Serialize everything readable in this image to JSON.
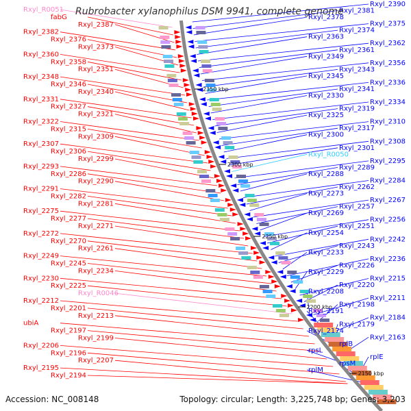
{
  "title": "Rubrobacter xylanophilus DSM 9941, complete genome",
  "footer": {
    "accession": "Accession: NC_008148",
    "summary": "Topology: circular; Length: 3,225,748 bp; Genes: 3,203"
  },
  "colors": {
    "forward": "#ff0000",
    "reverse": "#0000ff",
    "rna_left": "#ff88cc",
    "rna_right": "#33ccff",
    "backbone": "#888888"
  },
  "ticks": [
    "2350 kbp",
    "2300 kbp",
    "2250 kbp",
    "2200 kbp",
    "2150 kbp"
  ],
  "left_labels": [
    {
      "text": "Rxyl_R0051",
      "kind": "rna"
    },
    {
      "text": "fabG",
      "kind": "gene"
    },
    {
      "text": "Rxyl_2387",
      "kind": "gene"
    },
    {
      "text": "Rxyl_2382",
      "kind": "gene"
    },
    {
      "text": "Rxyl_2376",
      "kind": "gene"
    },
    {
      "text": "Rxyl_2373",
      "kind": "gene"
    },
    {
      "text": "Rxyl_2360",
      "kind": "gene"
    },
    {
      "text": "Rxyl_2358",
      "kind": "gene"
    },
    {
      "text": "Rxyl_2351",
      "kind": "gene"
    },
    {
      "text": "Rxyl_2348",
      "kind": "gene"
    },
    {
      "text": "Rxyl_2346",
      "kind": "gene"
    },
    {
      "text": "Rxyl_2340",
      "kind": "gene"
    },
    {
      "text": "Rxyl_2331",
      "kind": "gene"
    },
    {
      "text": "Rxyl_2327",
      "kind": "gene"
    },
    {
      "text": "Rxyl_2321",
      "kind": "gene"
    },
    {
      "text": "Rxyl_2322",
      "kind": "gene"
    },
    {
      "text": "Rxyl_2315",
      "kind": "gene"
    },
    {
      "text": "Rxyl_2309",
      "kind": "gene"
    },
    {
      "text": "Rxyl_2307",
      "kind": "gene"
    },
    {
      "text": "Rxyl_2306",
      "kind": "gene"
    },
    {
      "text": "Rxyl_2299",
      "kind": "gene"
    },
    {
      "text": "Rxyl_2293",
      "kind": "gene"
    },
    {
      "text": "Rxyl_2286",
      "kind": "gene"
    },
    {
      "text": "Rxyl_2290",
      "kind": "gene"
    },
    {
      "text": "Rxyl_2291",
      "kind": "gene"
    },
    {
      "text": "Rxyl_2282",
      "kind": "gene"
    },
    {
      "text": "Rxyl_2281",
      "kind": "gene"
    },
    {
      "text": "Rxyl_2275",
      "kind": "gene"
    },
    {
      "text": "Rxyl_2277",
      "kind": "gene"
    },
    {
      "text": "Rxyl_2271",
      "kind": "gene"
    },
    {
      "text": "Rxyl_2272",
      "kind": "gene"
    },
    {
      "text": "Rxyl_2270",
      "kind": "gene"
    },
    {
      "text": "Rxyl_2261",
      "kind": "gene"
    },
    {
      "text": "Rxyl_2249",
      "kind": "gene"
    },
    {
      "text": "Rxyl_2245",
      "kind": "gene"
    },
    {
      "text": "Rxyl_2234",
      "kind": "gene"
    },
    {
      "text": "Rxyl_2230",
      "kind": "gene"
    },
    {
      "text": "Rxyl_2225",
      "kind": "gene"
    },
    {
      "text": "Rxyl_R0046",
      "kind": "rna"
    },
    {
      "text": "Rxyl_2212",
      "kind": "gene"
    },
    {
      "text": "Rxyl_2201",
      "kind": "gene"
    },
    {
      "text": "Rxyl_2213",
      "kind": "gene"
    },
    {
      "text": "ubiA",
      "kind": "gene"
    },
    {
      "text": "Rxyl_2197",
      "kind": "gene"
    },
    {
      "text": "Rxyl_2199",
      "kind": "gene"
    },
    {
      "text": "Rxyl_2206",
      "kind": "gene"
    },
    {
      "text": "Rxyl_2196",
      "kind": "gene"
    },
    {
      "text": "Rxyl_2207",
      "kind": "gene"
    },
    {
      "text": "Rxyl_2195",
      "kind": "gene"
    },
    {
      "text": "Rxyl_2194",
      "kind": "gene"
    }
  ],
  "right_labels": [
    {
      "text": "Rxyl_2390",
      "kind": "gene"
    },
    {
      "text": "Rxyl_2381",
      "kind": "gene"
    },
    {
      "text": "Rxyl_2378",
      "kind": "gene"
    },
    {
      "text": "Rxyl_2375",
      "kind": "gene"
    },
    {
      "text": "Rxyl_2374",
      "kind": "gene"
    },
    {
      "text": "Rxyl_2363",
      "kind": "gene"
    },
    {
      "text": "Rxyl_2362",
      "kind": "gene"
    },
    {
      "text": "Rxyl_2361",
      "kind": "gene"
    },
    {
      "text": "Rxyl_2349",
      "kind": "gene"
    },
    {
      "text": "Rxyl_2356",
      "kind": "gene"
    },
    {
      "text": "Rxyl_2343",
      "kind": "gene"
    },
    {
      "text": "Rxyl_2345",
      "kind": "gene"
    },
    {
      "text": "Rxyl_2336",
      "kind": "gene"
    },
    {
      "text": "Rxyl_2341",
      "kind": "gene"
    },
    {
      "text": "Rxyl_2330",
      "kind": "gene"
    },
    {
      "text": "Rxyl_2334",
      "kind": "gene"
    },
    {
      "text": "Rxyl_2319",
      "kind": "gene"
    },
    {
      "text": "Rxyl_2325",
      "kind": "gene"
    },
    {
      "text": "Rxyl_2310",
      "kind": "gene"
    },
    {
      "text": "Rxyl_2317",
      "kind": "gene"
    },
    {
      "text": "Rxyl_2300",
      "kind": "gene"
    },
    {
      "text": "Rxyl_2308",
      "kind": "gene"
    },
    {
      "text": "Rxyl_2301",
      "kind": "gene"
    },
    {
      "text": "Rxyl_R0050",
      "kind": "rna"
    },
    {
      "text": "Rxyl_2295",
      "kind": "gene"
    },
    {
      "text": "Rxyl_2289",
      "kind": "gene"
    },
    {
      "text": "Rxyl_2288",
      "kind": "gene"
    },
    {
      "text": "Rxyl_2284",
      "kind": "gene"
    },
    {
      "text": "Rxyl_2262",
      "kind": "gene"
    },
    {
      "text": "Rxyl_2273",
      "kind": "gene"
    },
    {
      "text": "Rxyl_2267",
      "kind": "gene"
    },
    {
      "text": "Rxyl_2257",
      "kind": "gene"
    },
    {
      "text": "Rxyl_2269",
      "kind": "gene"
    },
    {
      "text": "Rxyl_2256",
      "kind": "gene"
    },
    {
      "text": "Rxyl_2251",
      "kind": "gene"
    },
    {
      "text": "Rxyl_2254",
      "kind": "gene"
    },
    {
      "text": "Rxyl_2242",
      "kind": "gene"
    },
    {
      "text": "Rxyl_2243",
      "kind": "gene"
    },
    {
      "text": "Rxyl_2233",
      "kind": "gene"
    },
    {
      "text": "Rxyl_2236",
      "kind": "gene"
    },
    {
      "text": "Rxyl_2226",
      "kind": "gene"
    },
    {
      "text": "Rxyl_2229",
      "kind": "gene"
    },
    {
      "text": "Rxyl_2215",
      "kind": "gene"
    },
    {
      "text": "Rxyl_2220",
      "kind": "gene"
    },
    {
      "text": "Rxyl_2208",
      "kind": "gene"
    },
    {
      "text": "Rxyl_2211",
      "kind": "gene"
    },
    {
      "text": "Rxyl_2198",
      "kind": "gene"
    },
    {
      "text": "Rxyl_2191",
      "kind": "gene"
    },
    {
      "text": "Rxyl_2184",
      "kind": "gene"
    },
    {
      "text": "Rxyl_2179",
      "kind": "gene"
    },
    {
      "text": "Rxyl_2174",
      "kind": "gene"
    },
    {
      "text": "Rxyl_2163",
      "kind": "gene"
    },
    {
      "text": "rplB",
      "kind": "gene"
    },
    {
      "text": "rpsL",
      "kind": "gene"
    },
    {
      "text": "rplE",
      "kind": "gene"
    },
    {
      "text": "rpsM",
      "kind": "gene"
    },
    {
      "text": "rplM",
      "kind": "gene"
    }
  ]
}
